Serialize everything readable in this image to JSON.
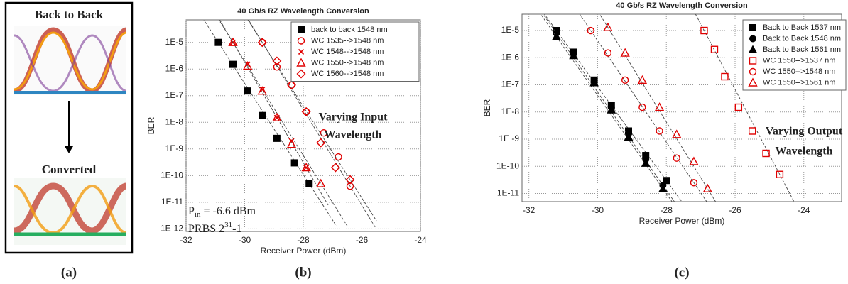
{
  "panel_a": {
    "top_label": "Back to Back",
    "bottom_label": "Converted"
  },
  "captions": [
    "(a)",
    "(b)",
    "(c)"
  ],
  "chart_data": [
    {
      "type": "scatter",
      "title": "40 Gb/s RZ Wavelength Conversion",
      "x_label": "Receiver Power (dBm)",
      "y_label": "BER",
      "log_y": true,
      "grid": true,
      "legend": "upper right",
      "xlim": [
        -32,
        -24
      ],
      "xticks": [
        -32,
        -30,
        -28,
        -26,
        -24
      ],
      "ylim": [
        8e-13,
        7e-05
      ],
      "yticks": [
        {
          "value": 1e-05,
          "label": "1E-5"
        },
        {
          "value": 1e-06,
          "label": "1E-6"
        },
        {
          "value": 1e-07,
          "label": "1E-7"
        },
        {
          "value": 1e-08,
          "label": "1E-8"
        },
        {
          "value": 1e-09,
          "label": "1E-9"
        },
        {
          "value": 1e-10,
          "label": "1E-10"
        },
        {
          "value": 1e-11,
          "label": "1E-11"
        },
        {
          "value": 1e-12,
          "label": "1E-12"
        }
      ],
      "annotation": [
        "Varying Input",
        "Wavelength"
      ],
      "power_note": [
        "P",
        "in",
        " = -6.6 dBm"
      ],
      "prbs_note": [
        "PRBS 2",
        "31",
        "-1"
      ],
      "series": [
        {
          "name": "back to back 1548 nm",
          "color": "#000000",
          "marker": "square-filled",
          "x": [
            -30.9,
            -30.4,
            -29.9,
            -29.4,
            -28.9,
            -28.3,
            -27.8
          ],
          "values": [
            1e-05,
            1.5e-06,
            1.5e-07,
            1.8e-08,
            2.5e-09,
            3e-10,
            5e-11
          ]
        },
        {
          "name": "WC 1535-->1548 nm",
          "color": "#e00000",
          "marker": "circle-open",
          "x": [
            -29.4,
            -28.9,
            -28.4,
            -27.9,
            -27.3,
            -26.8,
            -26.4
          ],
          "values": [
            1e-05,
            1.2e-06,
            2.5e-07,
            2.5e-08,
            4e-09,
            5e-10,
            4e-11
          ]
        },
        {
          "name": "WC 1548-->1548 nm",
          "color": "#e00000",
          "marker": "x",
          "x": [
            -30.4,
            -29.9,
            -29.4,
            -28.9,
            -28.4,
            -27.9
          ],
          "values": [
            1e-05,
            1.5e-06,
            1.7e-07,
            1.5e-08,
            2e-09,
            2e-10
          ]
        },
        {
          "name": "WC 1550-->1548 nm",
          "color": "#e00000",
          "marker": "triangle-open",
          "x": [
            -30.4,
            -29.9,
            -29.4,
            -28.9,
            -28.4,
            -27.9,
            -27.4
          ],
          "values": [
            1e-05,
            1.3e-06,
            1.5e-07,
            1.5e-08,
            1.5e-09,
            2e-10,
            5e-11
          ]
        },
        {
          "name": "WC 1560-->1548 nm",
          "color": "#e00000",
          "marker": "diamond-open",
          "x": [
            -29.4,
            -28.9,
            -28.4,
            -27.9,
            -27.4,
            -26.9,
            -26.4
          ],
          "values": [
            1e-05,
            2e-06,
            2.5e-07,
            2.5e-08,
            1.7e-09,
            2e-10,
            7e-11
          ]
        }
      ]
    },
    {
      "type": "scatter",
      "title": "40 Gb/s RZ Wavelength Conversion",
      "x_label": "Receiver Power (dBm)",
      "y_label": "BER",
      "log_y": true,
      "grid": true,
      "legend": "upper right",
      "xlim": [
        -32.2,
        -22.9
      ],
      "xticks": [
        -32,
        -30,
        -28,
        -26,
        -24
      ],
      "ylim": [
        5e-12,
        4e-05
      ],
      "yticks": [
        {
          "value": 1e-05,
          "label": "1E-5"
        },
        {
          "value": 1e-06,
          "label": "1E-6"
        },
        {
          "value": 1e-07,
          "label": "1E-7"
        },
        {
          "value": 1e-08,
          "label": "1E-8"
        },
        {
          "value": 1e-09,
          "label": "1E -9"
        },
        {
          "value": 1e-10,
          "label": "1E-10"
        },
        {
          "value": 1e-11,
          "label": "1E-11"
        }
      ],
      "annotation": [
        "Varying Output",
        "Wavelength"
      ],
      "series": [
        {
          "name": "Back to Back 1537 nm",
          "color": "#000000",
          "marker": "square-filled",
          "x": [
            -31.2,
            -30.7,
            -30.1,
            -29.6,
            -29.1,
            -28.6,
            -28.0
          ],
          "values": [
            1e-05,
            1.6e-06,
            1.5e-07,
            1.8e-08,
            2e-09,
            2.5e-10,
            3e-11
          ]
        },
        {
          "name": "Back to Back 1548 nm",
          "color": "#000000",
          "marker": "circle-filled",
          "x": [
            -31.2,
            -30.7,
            -30.1,
            -29.6,
            -29.1,
            -28.6,
            -28.1
          ],
          "values": [
            8e-06,
            1.4e-06,
            1.3e-07,
            1.5e-08,
            1.6e-09,
            1.8e-10,
            2e-11
          ]
        },
        {
          "name": "Back to Back 1561 nm",
          "color": "#000000",
          "marker": "triangle-filled",
          "x": [
            -31.2,
            -30.7,
            -30.1,
            -29.6,
            -29.1,
            -28.6,
            -28.1
          ],
          "values": [
            6e-06,
            1.2e-06,
            1.2e-07,
            1.2e-08,
            1.2e-09,
            1.3e-10,
            1.5e-11
          ]
        },
        {
          "name": "WC 1550-->1537 nm",
          "color": "#e00000",
          "marker": "square-open",
          "x": [
            -26.9,
            -26.6,
            -26.3,
            -25.9,
            -25.5,
            -25.1,
            -24.7
          ],
          "values": [
            1e-05,
            2e-06,
            2e-07,
            1.5e-08,
            2e-09,
            3e-10,
            5e-11
          ]
        },
        {
          "name": "WC 1550-->1548 nm",
          "color": "#e00000",
          "marker": "circle-open",
          "x": [
            -30.2,
            -29.7,
            -29.2,
            -28.7,
            -28.2,
            -27.7,
            -27.2
          ],
          "values": [
            1e-05,
            1.5e-06,
            1.5e-07,
            1.5e-08,
            2e-09,
            2e-10,
            2.5e-11
          ]
        },
        {
          "name": "WC 1550-->1561 nm",
          "color": "#e00000",
          "marker": "triangle-open",
          "x": [
            -29.7,
            -29.2,
            -28.7,
            -28.2,
            -27.7,
            -27.2,
            -26.8
          ],
          "values": [
            1.3e-05,
            1.5e-06,
            1.5e-07,
            1.5e-08,
            1.5e-09,
            1.5e-10,
            1.5e-11
          ]
        }
      ]
    }
  ]
}
